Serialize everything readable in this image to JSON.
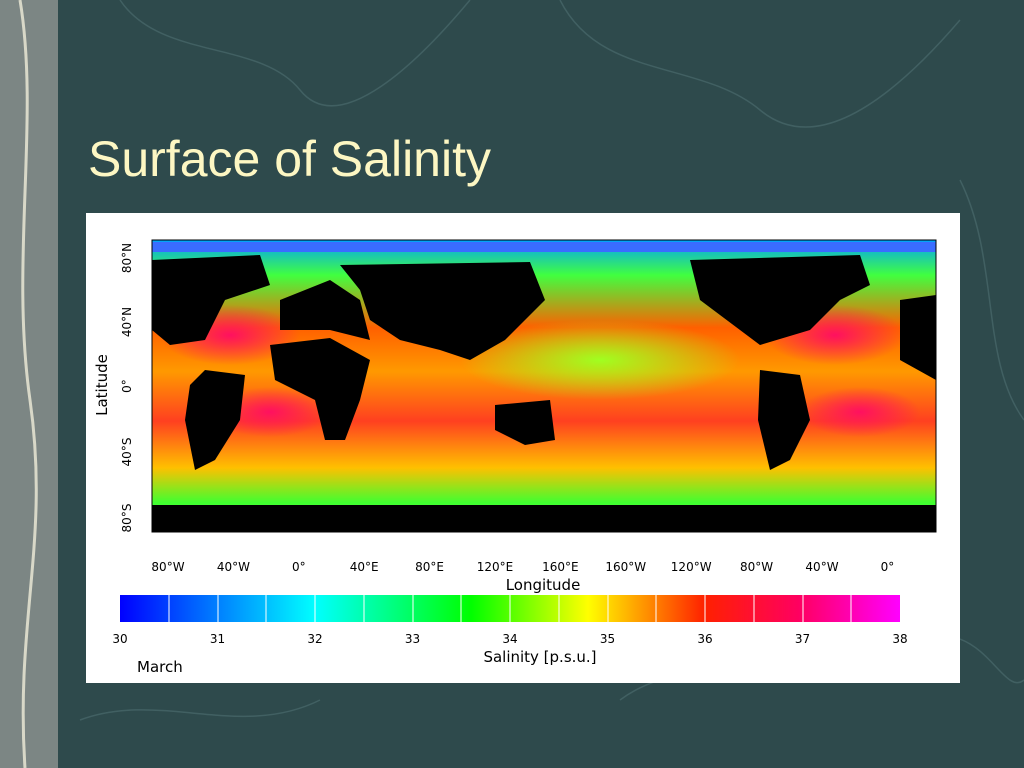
{
  "slide": {
    "title": "Surface of Salinity"
  },
  "figure": {
    "lat_ticks": [
      "80°N",
      "40°N",
      "0°",
      "40°S",
      "80°S"
    ],
    "lat_label": "Latitude",
    "lon_ticks": [
      "80°W",
      "40°W",
      "0°",
      "40°E",
      "80°E",
      "120°E",
      "160°E",
      "160°W",
      "120°W",
      "80°W",
      "40°W",
      "0°"
    ],
    "lon_label": "Longitude",
    "colorbar_ticks": [
      30,
      31,
      32,
      33,
      34,
      35,
      36,
      37,
      38
    ],
    "colorbar_label": "Salinity [p.s.u.]",
    "month": "March"
  }
}
